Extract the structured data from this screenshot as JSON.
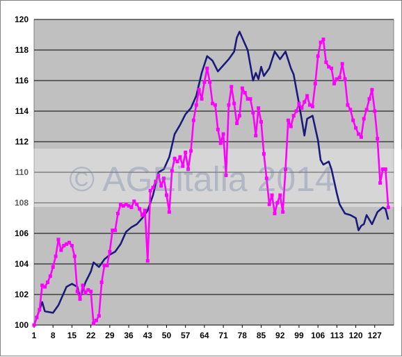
{
  "chart_data": {
    "type": "line",
    "title": "",
    "xlabel": "",
    "ylabel": "",
    "x_tick_labels": [
      "1",
      "8",
      "15",
      "22",
      "29",
      "36",
      "43",
      "50",
      "57",
      "64",
      "71",
      "78",
      "85",
      "92",
      "99",
      "106",
      "113",
      "120",
      "127"
    ],
    "x_tick_values": [
      1,
      8,
      15,
      22,
      29,
      36,
      43,
      50,
      57,
      64,
      71,
      78,
      85,
      92,
      99,
      106,
      113,
      120,
      127
    ],
    "xlim": [
      1,
      134
    ],
    "ylim": [
      100,
      120
    ],
    "y_ticks": [
      100,
      102,
      104,
      106,
      108,
      110,
      112,
      114,
      116,
      118,
      120
    ],
    "grid": true,
    "legend": "none",
    "series": [
      {
        "color": "#1a1a7a",
        "markers": false,
        "points": [
          [
            1,
            100
          ],
          [
            4,
            101.5
          ],
          [
            5,
            100.9
          ],
          [
            8,
            100.8
          ],
          [
            10,
            101.3
          ],
          [
            13,
            102.5
          ],
          [
            15,
            102.7
          ],
          [
            17,
            102.5
          ],
          [
            18,
            101.8
          ],
          [
            20,
            102.8
          ],
          [
            22,
            103.5
          ],
          [
            23,
            104.1
          ],
          [
            25,
            103.8
          ],
          [
            27,
            104.3
          ],
          [
            29,
            104.6
          ],
          [
            31,
            104.8
          ],
          [
            33,
            105.3
          ],
          [
            35,
            106.1
          ],
          [
            37,
            106.4
          ],
          [
            39,
            106.6
          ],
          [
            41,
            107
          ],
          [
            43,
            107.5
          ],
          [
            45,
            108.5
          ],
          [
            47,
            110
          ],
          [
            49,
            110.2
          ],
          [
            51,
            111
          ],
          [
            53,
            112.5
          ],
          [
            55,
            113.1
          ],
          [
            57,
            113.8
          ],
          [
            59,
            114.2
          ],
          [
            61,
            115
          ],
          [
            63,
            116.5
          ],
          [
            65,
            117.6
          ],
          [
            67,
            117.3
          ],
          [
            69,
            116.6
          ],
          [
            71,
            117
          ],
          [
            73,
            117.4
          ],
          [
            75,
            117.9
          ],
          [
            76,
            118.8
          ],
          [
            77,
            119.2
          ],
          [
            78,
            118.8
          ],
          [
            80,
            118
          ],
          [
            82,
            116
          ],
          [
            83,
            116.5
          ],
          [
            84,
            116.1
          ],
          [
            85,
            116.9
          ],
          [
            86,
            116.3
          ],
          [
            88,
            116.8
          ],
          [
            90,
            117.9
          ],
          [
            92,
            117.4
          ],
          [
            94,
            117.9
          ],
          [
            96,
            116.8
          ],
          [
            97,
            116.4
          ],
          [
            99,
            114.5
          ],
          [
            101,
            112.4
          ],
          [
            102,
            113.5
          ],
          [
            104,
            113.7
          ],
          [
            106,
            112.1
          ],
          [
            107,
            110.8
          ],
          [
            108,
            110.5
          ],
          [
            110,
            110.7
          ],
          [
            111,
            110.2
          ],
          [
            113,
            108.6
          ],
          [
            114,
            107.9
          ],
          [
            116,
            107.3
          ],
          [
            118,
            107.2
          ],
          [
            120,
            107
          ],
          [
            121,
            106.2
          ],
          [
            122,
            106.5
          ],
          [
            123,
            106.6
          ],
          [
            124,
            107.2
          ],
          [
            126,
            106.6
          ],
          [
            127,
            107
          ],
          [
            128,
            107.4
          ],
          [
            130,
            107.7
          ],
          [
            131,
            107.6
          ],
          [
            132,
            106.9
          ]
        ]
      },
      {
        "color": "#ff00ff",
        "markers": true,
        "points": [
          [
            1,
            100
          ],
          [
            2,
            100.5
          ],
          [
            3,
            101
          ],
          [
            4,
            102.6
          ],
          [
            5,
            102.5
          ],
          [
            6,
            102.8
          ],
          [
            7,
            103.2
          ],
          [
            8,
            103.8
          ],
          [
            9,
            104.5
          ],
          [
            10,
            105.6
          ],
          [
            11,
            104.9
          ],
          [
            12,
            105.2
          ],
          [
            13,
            105.3
          ],
          [
            14,
            105.4
          ],
          [
            15,
            105.2
          ],
          [
            16,
            104.5
          ],
          [
            17,
            102.2
          ],
          [
            18,
            101.7
          ],
          [
            19,
            102.6
          ],
          [
            20,
            102.1
          ],
          [
            21,
            102.3
          ],
          [
            22,
            102.2
          ],
          [
            23,
            100.1
          ],
          [
            24,
            100.3
          ],
          [
            25,
            100.6
          ],
          [
            26,
            102.8
          ],
          [
            27,
            103.9
          ],
          [
            28,
            103.9
          ],
          [
            29,
            104.8
          ],
          [
            30,
            106.2
          ],
          [
            31,
            106.2
          ],
          [
            32,
            107.3
          ],
          [
            33,
            107.9
          ],
          [
            34,
            107.8
          ],
          [
            35,
            107.9
          ],
          [
            36,
            107.8
          ],
          [
            37,
            107.7
          ],
          [
            38,
            108.1
          ],
          [
            39,
            107.9
          ],
          [
            40,
            107.6
          ],
          [
            41,
            107.2
          ],
          [
            42,
            107.5
          ],
          [
            43,
            104.2
          ],
          [
            44,
            108.8
          ],
          [
            45,
            109
          ],
          [
            46,
            109.4
          ],
          [
            47,
            109.8
          ],
          [
            48,
            109.1
          ],
          [
            49,
            109.6
          ],
          [
            50,
            108.5
          ],
          [
            51,
            107.4
          ],
          [
            52,
            110.1
          ],
          [
            53,
            110.9
          ],
          [
            54,
            110.7
          ],
          [
            55,
            111
          ],
          [
            56,
            110.4
          ],
          [
            57,
            111.3
          ],
          [
            58,
            110.2
          ],
          [
            59,
            111.4
          ],
          [
            60,
            113.4
          ],
          [
            61,
            114.4
          ],
          [
            62,
            115.4
          ],
          [
            63,
            114.8
          ],
          [
            64,
            115.9
          ],
          [
            65,
            116.8
          ],
          [
            66,
            115.9
          ],
          [
            67,
            114.5
          ],
          [
            68,
            114.4
          ],
          [
            69,
            112.8
          ],
          [
            70,
            111.9
          ],
          [
            71,
            112.5
          ],
          [
            72,
            109.8
          ],
          [
            73,
            114.4
          ],
          [
            74,
            115.6
          ],
          [
            75,
            114.5
          ],
          [
            76,
            113.2
          ],
          [
            77,
            113.7
          ],
          [
            78,
            115.5
          ],
          [
            79,
            115.2
          ],
          [
            80,
            114.8
          ],
          [
            81,
            114.8
          ],
          [
            82,
            113.9
          ],
          [
            83,
            112.4
          ],
          [
            84,
            114.2
          ],
          [
            85,
            113.3
          ],
          [
            86,
            111.2
          ],
          [
            87,
            109.6
          ],
          [
            88,
            107.9
          ],
          [
            89,
            108.5
          ],
          [
            90,
            107.3
          ],
          [
            91,
            108
          ],
          [
            92,
            108.5
          ],
          [
            93,
            107.4
          ],
          [
            94,
            110.2
          ],
          [
            95,
            113.4
          ],
          [
            96,
            113
          ],
          [
            97,
            113.7
          ],
          [
            98,
            114
          ],
          [
            99,
            114.5
          ],
          [
            100,
            114.2
          ],
          [
            101,
            114.6
          ],
          [
            102,
            115
          ],
          [
            103,
            114.4
          ],
          [
            104,
            114.3
          ],
          [
            105,
            115.8
          ],
          [
            106,
            117.6
          ],
          [
            107,
            118.5
          ],
          [
            108,
            118.7
          ],
          [
            109,
            117.2
          ],
          [
            110,
            116.9
          ],
          [
            111,
            116.8
          ],
          [
            112,
            115.8
          ],
          [
            113,
            116.1
          ],
          [
            114,
            116.2
          ],
          [
            115,
            117.1
          ],
          [
            116,
            116.1
          ],
          [
            117,
            114.4
          ],
          [
            118,
            114.1
          ],
          [
            119,
            113.4
          ],
          [
            120,
            112.9
          ],
          [
            121,
            112.5
          ],
          [
            122,
            112.3
          ],
          [
            123,
            113.5
          ],
          [
            124,
            114.1
          ],
          [
            125,
            114.8
          ],
          [
            126,
            115.4
          ],
          [
            127,
            114
          ],
          [
            128,
            112.2
          ],
          [
            129,
            109.3
          ],
          [
            130,
            110.2
          ],
          [
            131,
            110.2
          ],
          [
            132,
            107.7
          ]
        ]
      }
    ]
  },
  "watermark": "© AGEitalia 2014",
  "colors": {
    "plot_background": "#c0c0c0",
    "gridline": "#000000"
  }
}
